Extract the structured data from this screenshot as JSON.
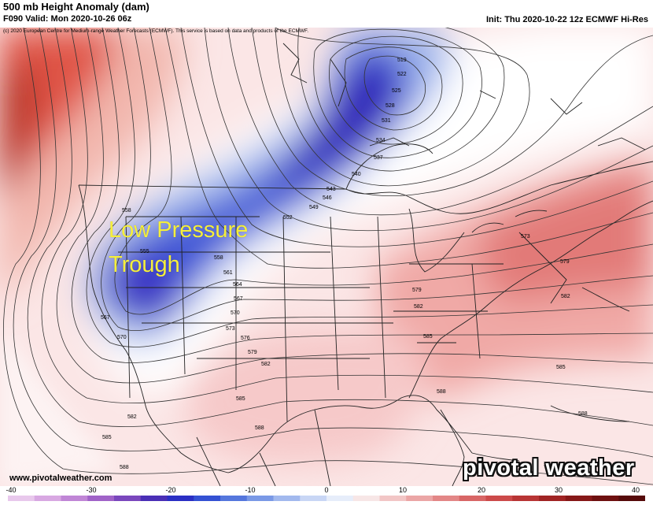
{
  "header": {
    "title": "500 mb Height Anomaly (dam)",
    "valid": "F090 Valid: Mon 2020-10-26 06z",
    "init": "Init: Thu 2020-10-22 12z ECMWF Hi-Res",
    "copyright": "(c) 2020 European Centre for Medium-range Weather Forecasts (ECMWF). This service is based on data and products of the ECMWF."
  },
  "annotation": {
    "line1": "Low Pressure",
    "line2": "Trough"
  },
  "footer": {
    "website": "www.pivotalweather.com",
    "logo_text": "pivotal weather"
  },
  "contour_labels": [
    "519",
    "522",
    "525",
    "528",
    "531",
    "534",
    "537",
    "540",
    "543",
    "546",
    "549",
    "552",
    "555",
    "558",
    "561",
    "564",
    "567",
    "570",
    "573",
    "576",
    "579",
    "582",
    "585",
    "588"
  ],
  "colorbar": {
    "ticks": [
      "-40",
      "-30",
      "-20",
      "-10",
      "0",
      "10",
      "20",
      "30",
      "40"
    ],
    "min": -40,
    "max": 40
  },
  "colors": {
    "annotation": "#f5ef3c",
    "negative": "#2a2fc4",
    "positive": "#d9333a"
  }
}
